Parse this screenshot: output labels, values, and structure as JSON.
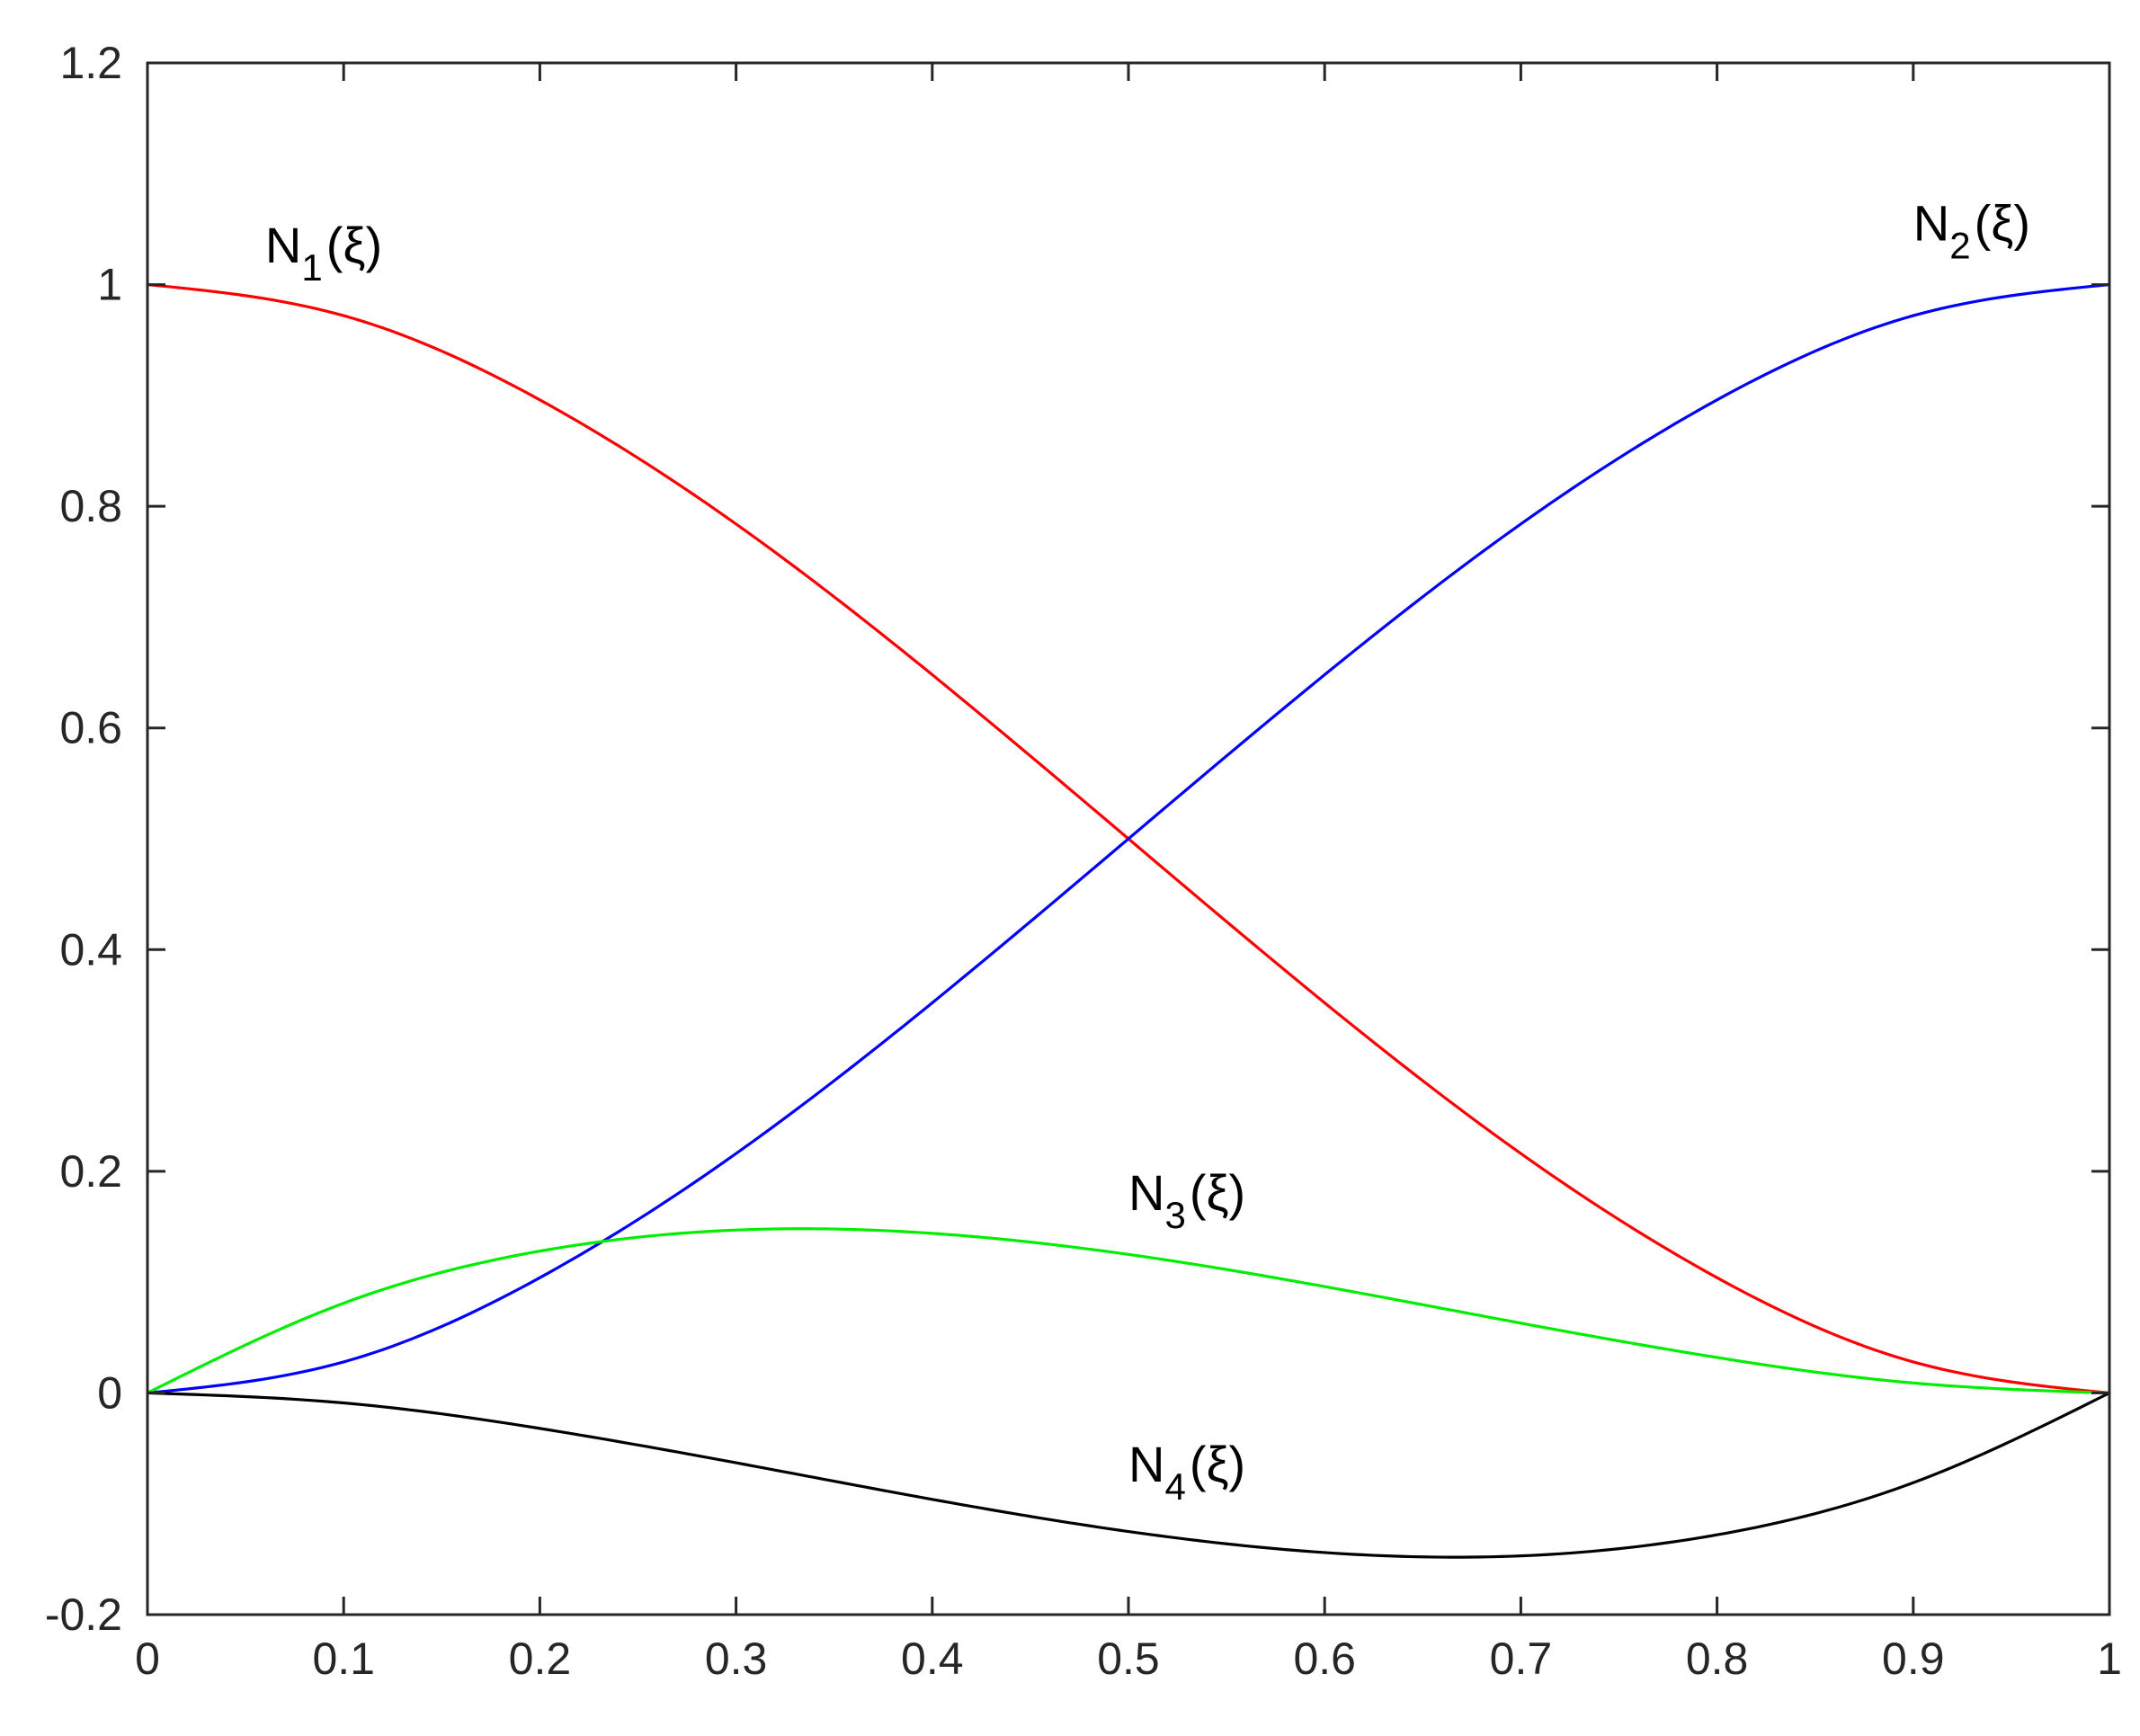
{
  "chart_data": {
    "type": "line",
    "title": "",
    "xlabel": "",
    "ylabel": "",
    "xlim": [
      0,
      1
    ],
    "ylim": [
      -0.2,
      1.2
    ],
    "x_ticks": [
      "0",
      "0.1",
      "0.2",
      "0.3",
      "0.4",
      "0.5",
      "0.6",
      "0.7",
      "0.8",
      "0.9",
      "1"
    ],
    "y_ticks": [
      "-0.2",
      "0",
      "0.2",
      "0.4",
      "0.6",
      "0.8",
      "1",
      "1.2"
    ],
    "grid": false,
    "x": [
      0,
      0.1,
      0.2,
      0.3,
      0.4,
      0.5,
      0.6,
      0.7,
      0.8,
      0.9,
      1
    ],
    "series": [
      {
        "name": "N1(ξ)",
        "color": "#ff0000",
        "values": [
          1,
          0.972,
          0.896,
          0.784,
          0.648,
          0.5,
          0.352,
          0.216,
          0.104,
          0.028,
          0
        ]
      },
      {
        "name": "N2(ξ)",
        "color": "#0000ff",
        "values": [
          0,
          0.028,
          0.104,
          0.216,
          0.352,
          0.5,
          0.648,
          0.784,
          0.896,
          0.972,
          1
        ]
      },
      {
        "name": "N3(ξ)",
        "color": "#00ee00",
        "values": [
          0,
          0.081,
          0.128,
          0.147,
          0.144,
          0.125,
          0.096,
          0.063,
          0.032,
          0.009,
          0
        ]
      },
      {
        "name": "N4(ξ)",
        "color": "#000000",
        "values": [
          0,
          -0.009,
          -0.032,
          -0.063,
          -0.096,
          -0.125,
          -0.144,
          -0.147,
          -0.128,
          -0.081,
          0
        ]
      }
    ],
    "annotations": [
      {
        "main": "N",
        "sub": "1",
        "arg": "(ξ)",
        "x": 0.06,
        "y": 1.02,
        "series": 0
      },
      {
        "main": "N",
        "sub": "2",
        "arg": "(ξ)",
        "x": 0.9,
        "y": 1.04,
        "series": 1
      },
      {
        "main": "N",
        "sub": "3",
        "arg": "(ξ)",
        "x": 0.5,
        "y": 0.165,
        "series": 2
      },
      {
        "main": "N",
        "sub": "4",
        "arg": "(ξ)",
        "x": 0.5,
        "y": -0.08,
        "series": 3
      }
    ]
  }
}
